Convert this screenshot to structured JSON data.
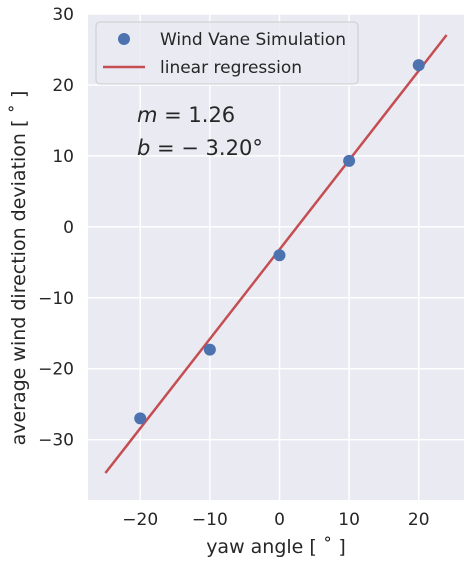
{
  "chart_data": {
    "type": "scatter",
    "xlabel": "yaw angle [ ˚ ]",
    "ylabel": "average wind direction deviation [ ˚ ]",
    "xlim": [
      -27.5,
      26.5
    ],
    "ylim": [
      -38.5,
      30
    ],
    "x_ticks": [
      -20,
      -10,
      0,
      10,
      20
    ],
    "y_ticks": [
      -30,
      -20,
      -10,
      0,
      10,
      20,
      30
    ],
    "x_tick_labels": [
      "−20",
      "−10",
      "0",
      "10",
      "20"
    ],
    "y_tick_labels": [
      "−30",
      "−20",
      "−10",
      "0",
      "10",
      "20",
      "30"
    ],
    "grid": true,
    "legend_position": "top-left",
    "series": [
      {
        "name": "Wind Vane Simulation",
        "kind": "scatter",
        "color": "#4c72b0",
        "x": [
          -20,
          -10,
          0,
          10,
          20
        ],
        "y": [
          -27.0,
          -17.3,
          -4.0,
          9.3,
          22.8
        ]
      },
      {
        "name": "linear regression",
        "kind": "line",
        "color": "#c44e52",
        "x": [
          -25,
          24
        ],
        "y": [
          -34.7,
          27.04
        ]
      }
    ],
    "annotations": [
      {
        "var": "m",
        "text": " = 1.26"
      },
      {
        "var": "b",
        "text": " = − 3.20°"
      }
    ]
  },
  "colors": {
    "plot_background": "#eaeaf2",
    "grid": "#ffffff",
    "text": "#262626"
  }
}
